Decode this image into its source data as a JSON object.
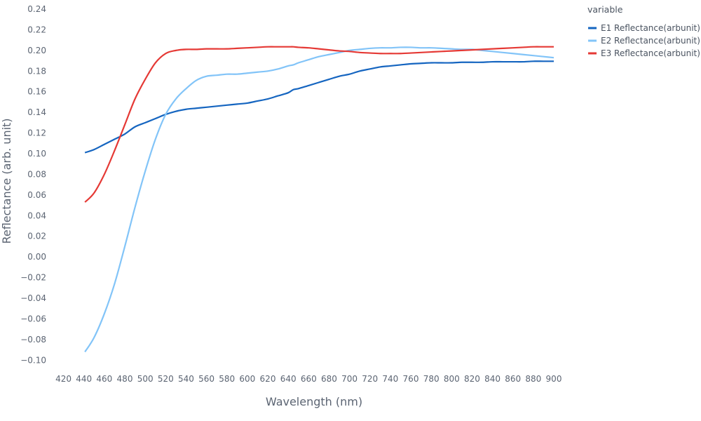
{
  "chart_data": {
    "type": "line",
    "xlabel": "Wavelength (nm)",
    "ylabel": "Reflectance (arb. unit)",
    "xlim": [
      410,
      900
    ],
    "ylim": [
      -0.11,
      0.24
    ],
    "x_ticks": [
      420,
      440,
      460,
      480,
      500,
      520,
      540,
      560,
      580,
      600,
      620,
      640,
      660,
      680,
      700,
      720,
      740,
      760,
      780,
      800,
      820,
      840,
      860,
      880,
      900
    ],
    "y_ticks": [
      -0.1,
      -0.08,
      -0.06,
      -0.04,
      -0.02,
      0.0,
      0.02,
      0.04,
      0.06,
      0.08,
      0.1,
      0.12,
      0.14,
      0.16,
      0.18,
      0.2,
      0.22,
      0.24
    ],
    "y_tick_labels": [
      "−0.10",
      "−0.08",
      "−0.06",
      "−0.04",
      "−0.02",
      "0.00",
      "0.02",
      "0.04",
      "0.06",
      "0.08",
      "0.10",
      "0.12",
      "0.14",
      "0.16",
      "0.18",
      "0.20",
      "0.22",
      "0.24"
    ],
    "grid": false,
    "legend": {
      "title": "variable",
      "position": "top-right"
    },
    "x": [
      441,
      450,
      460,
      470,
      480,
      490,
      500,
      510,
      520,
      530,
      540,
      550,
      560,
      570,
      580,
      590,
      600,
      610,
      620,
      630,
      640,
      645,
      650,
      660,
      670,
      680,
      690,
      700,
      710,
      720,
      730,
      740,
      750,
      760,
      770,
      780,
      790,
      800,
      810,
      820,
      830,
      840,
      850,
      860,
      870,
      880,
      890,
      900
    ],
    "series": [
      {
        "name": "E1 Reflectance(arbunit)",
        "color": "#1565c0",
        "values": [
          0.101,
          0.104,
          0.109,
          0.114,
          0.119,
          0.126,
          0.13,
          0.134,
          0.138,
          0.141,
          0.143,
          0.144,
          0.145,
          0.146,
          0.147,
          0.148,
          0.149,
          0.151,
          0.153,
          0.156,
          0.159,
          0.162,
          0.163,
          0.166,
          0.169,
          0.172,
          0.175,
          0.177,
          0.18,
          0.182,
          0.184,
          0.185,
          0.186,
          0.187,
          0.1875,
          0.188,
          0.188,
          0.188,
          0.1885,
          0.1885,
          0.1885,
          0.189,
          0.189,
          0.189,
          0.189,
          0.1895,
          0.1895,
          0.1895
        ]
      },
      {
        "name": "E2 Reflectance(arbunit)",
        "color": "#82c4f8",
        "values": [
          -0.092,
          -0.078,
          -0.055,
          -0.026,
          0.01,
          0.048,
          0.083,
          0.114,
          0.138,
          0.153,
          0.163,
          0.171,
          0.175,
          0.176,
          0.177,
          0.177,
          0.178,
          0.179,
          0.18,
          0.182,
          0.185,
          0.186,
          0.188,
          0.191,
          0.194,
          0.196,
          0.198,
          0.2,
          0.201,
          0.202,
          0.2025,
          0.2025,
          0.203,
          0.203,
          0.2025,
          0.2025,
          0.202,
          0.2015,
          0.201,
          0.201,
          0.2,
          0.199,
          0.198,
          0.197,
          0.196,
          0.195,
          0.194,
          0.193
        ]
      },
      {
        "name": "E3 Reflectance(arbunit)",
        "color": "#e53935",
        "values": [
          0.053,
          0.062,
          0.08,
          0.103,
          0.128,
          0.153,
          0.172,
          0.188,
          0.197,
          0.2,
          0.201,
          0.201,
          0.2015,
          0.2015,
          0.2015,
          0.202,
          0.2025,
          0.203,
          0.2035,
          0.2035,
          0.2035,
          0.2035,
          0.203,
          0.2025,
          0.2015,
          0.2005,
          0.1995,
          0.199,
          0.198,
          0.1975,
          0.197,
          0.197,
          0.197,
          0.1975,
          0.198,
          0.1985,
          0.199,
          0.1995,
          0.2,
          0.2005,
          0.201,
          0.2015,
          0.202,
          0.2025,
          0.203,
          0.2035,
          0.2035,
          0.2035
        ]
      }
    ]
  }
}
